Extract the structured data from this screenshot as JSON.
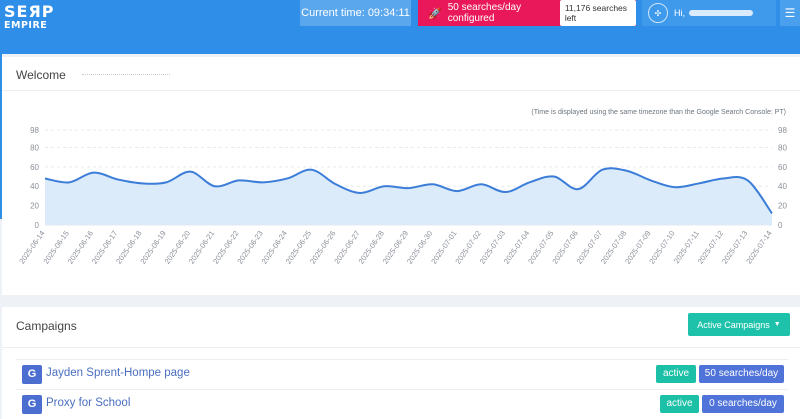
{
  "header": {
    "logo_line1": "SEЯP",
    "logo_line2": "EMPIRE",
    "time_label": "Current time:",
    "time_value": "09:34:11",
    "searches_configured": "50 searches/day configured",
    "searches_left": "11,176 searches left",
    "user_greeting": "Hi,",
    "icons": {
      "rocket": "rocket-icon",
      "avatar": "avatar-icon",
      "menu": "hamburger-menu-icon"
    },
    "colors": {
      "topbar": "#2f8ee8",
      "searches_box": "#e8185a"
    }
  },
  "welcome": {
    "title": "Welcome",
    "timezone_note": "(Time is displayed using the same timezone than the Google Search Console: PT)"
  },
  "chart_data": {
    "type": "area",
    "x": [
      "2025-06-14",
      "2025-06-15",
      "2025-06-16",
      "2025-06-17",
      "2025-06-18",
      "2025-06-19",
      "2025-06-20",
      "2025-06-21",
      "2025-06-22",
      "2025-06-23",
      "2025-06-24",
      "2025-06-25",
      "2025-06-26",
      "2025-06-27",
      "2025-06-28",
      "2025-06-29",
      "2025-06-30",
      "2025-07-01",
      "2025-07-02",
      "2025-07-03",
      "2025-07-04",
      "2025-07-05",
      "2025-07-06",
      "2025-07-07",
      "2025-07-08",
      "2025-07-09",
      "2025-07-10",
      "2025-07-11",
      "2025-07-12",
      "2025-07-13",
      "2025-07-14"
    ],
    "series": [
      {
        "values": [
          48,
          44,
          54,
          47,
          43,
          44,
          55,
          40,
          46,
          44,
          48,
          57,
          42,
          33,
          40,
          38,
          42,
          35,
          42,
          34,
          44,
          50,
          37,
          57,
          56,
          46,
          39,
          43,
          48,
          46,
          12
        ]
      }
    ],
    "y_ticks": [
      0,
      20,
      40,
      60,
      80,
      98
    ],
    "ylim": [
      0,
      98
    ],
    "grid": true,
    "line_color": "#3b7dd8",
    "fill_color": "#d5e8f8"
  },
  "campaigns": {
    "title": "Campaigns",
    "filter_button": "Active Campaigns",
    "items": [
      {
        "badge": "G",
        "name": "Jayden Sprent-Hompe page",
        "status": "active",
        "quota": "50 searches/day"
      },
      {
        "badge": "G",
        "name": "Proxy for School",
        "status": "active",
        "quota": "0 searches/day"
      }
    ],
    "colors": {
      "active": "#1cc0a6",
      "quota": "#4f73d8",
      "google_badge": "#4c6ed1"
    }
  }
}
